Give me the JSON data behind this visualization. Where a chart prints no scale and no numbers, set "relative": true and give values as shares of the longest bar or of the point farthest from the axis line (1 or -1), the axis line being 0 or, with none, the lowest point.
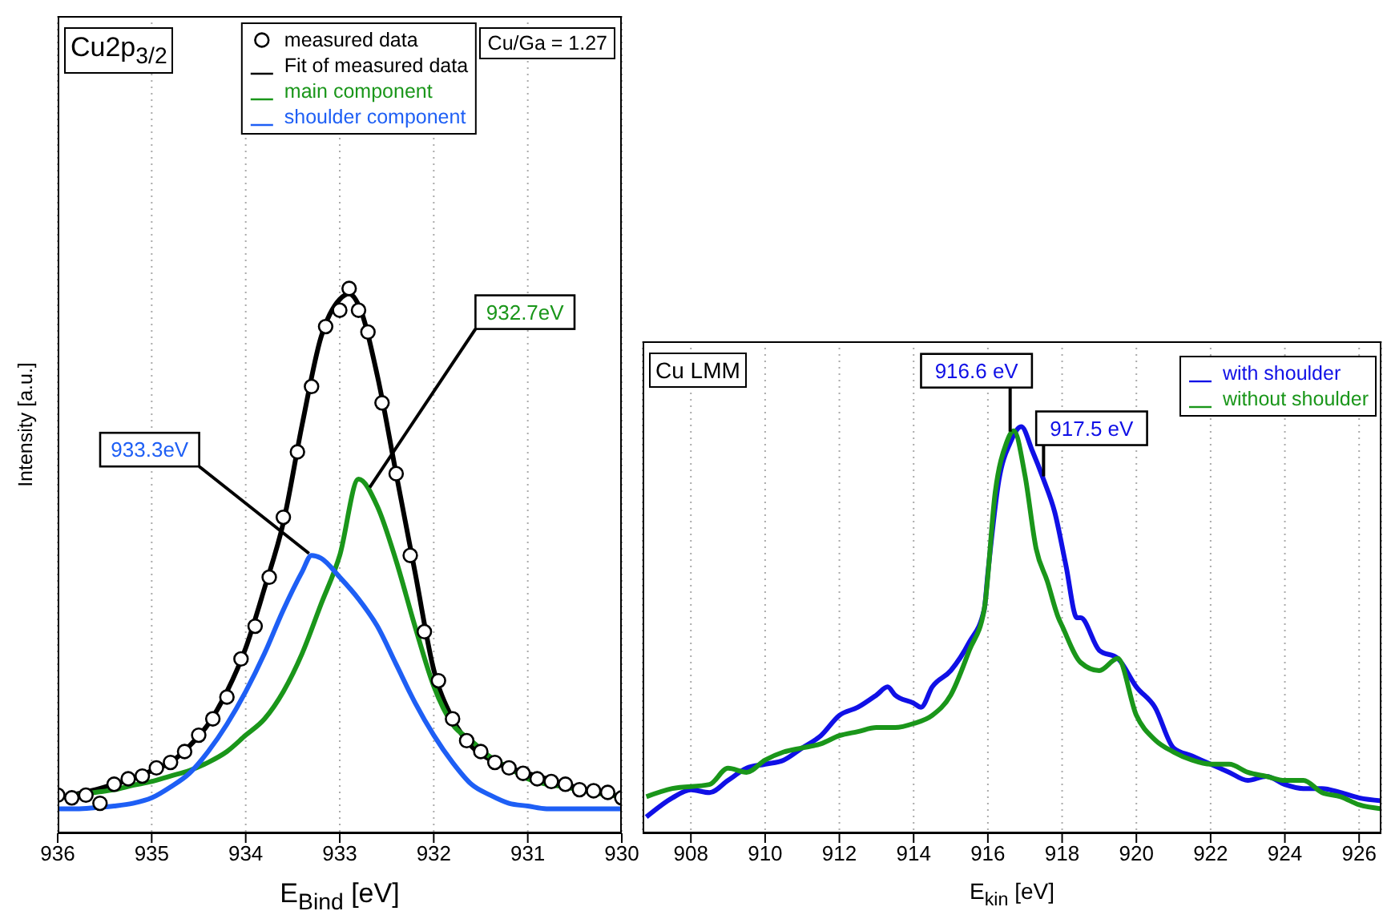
{
  "chart_data": [
    {
      "type": "line",
      "title": "Cu2p$_{3/2}$",
      "xlabel": "E$_{Bind}$ [eV]",
      "ylabel": "Intensity [a.u.]",
      "relative": true,
      "xlim": [
        936,
        930
      ],
      "xticks": [
        936,
        935,
        934,
        933,
        932,
        931,
        930
      ],
      "grid": "x",
      "legend": "top",
      "annotations": [
        {
          "text": "933.3eV",
          "x": 933.3,
          "y": 0.51
        },
        {
          "text": "932.7eV",
          "x": 932.7,
          "y": 0.63
        },
        "Cu/Ga = 1.27"
      ],
      "series": [
        {
          "name": "measured data",
          "type": "scatter",
          "marker": "circle",
          "color": "#000000",
          "x": [
            936,
            935.85,
            935.7,
            935.55,
            935.4,
            935.25,
            935.1,
            934.95,
            934.8,
            934.65,
            934.5,
            934.35,
            934.2,
            934.05,
            933.9,
            933.75,
            933.6,
            933.45,
            933.3,
            933.15,
            933,
            932.9,
            932.8,
            932.7,
            932.55,
            932.4,
            932.25,
            932.1,
            931.95,
            931.8,
            931.65,
            931.5,
            931.35,
            931.2,
            931.05,
            930.9,
            930.75,
            930.6,
            930.45,
            930.3,
            930.15,
            930
          ],
          "values": [
            0.07,
            0.065,
            0.07,
            0.055,
            0.09,
            0.1,
            0.105,
            0.12,
            0.13,
            0.15,
            0.18,
            0.21,
            0.25,
            0.32,
            0.38,
            0.47,
            0.58,
            0.7,
            0.82,
            0.93,
            0.96,
            1.0,
            0.96,
            0.92,
            0.79,
            0.66,
            0.51,
            0.37,
            0.28,
            0.21,
            0.17,
            0.15,
            0.13,
            0.12,
            0.11,
            0.1,
            0.095,
            0.09,
            0.08,
            0.078,
            0.075,
            0.065
          ]
        },
        {
          "name": "Fit of measured data",
          "color": "#000000",
          "x": [
            936,
            935.8,
            935.6,
            935.4,
            935.2,
            935,
            934.8,
            934.6,
            934.4,
            934.2,
            934,
            933.8,
            933.6,
            933.4,
            933.2,
            933,
            932.9,
            932.8,
            932.6,
            932.4,
            932.2,
            932,
            931.8,
            931.6,
            931.4,
            931.2,
            931,
            930.8,
            930.6,
            930.4,
            930.2,
            930
          ],
          "values": [
            0.065,
            0.072,
            0.08,
            0.09,
            0.1,
            0.115,
            0.13,
            0.16,
            0.2,
            0.26,
            0.34,
            0.45,
            0.57,
            0.75,
            0.91,
            0.98,
            0.99,
            0.97,
            0.84,
            0.66,
            0.48,
            0.3,
            0.21,
            0.16,
            0.135,
            0.12,
            0.11,
            0.1,
            0.09,
            0.08,
            0.073,
            0.068
          ]
        },
        {
          "name": "main component",
          "color": "#1a961a",
          "x": [
            936,
            935.8,
            935.6,
            935.4,
            935.2,
            935,
            934.8,
            934.6,
            934.4,
            934.2,
            934,
            933.8,
            933.6,
            933.4,
            933.2,
            933,
            932.8,
            932.6,
            932.4,
            932.2,
            932,
            931.8,
            931.6,
            931.4,
            931.2,
            931,
            930.8,
            930.6,
            930.4,
            930.2,
            930
          ],
          "values": [
            0.065,
            0.07,
            0.075,
            0.08,
            0.088,
            0.095,
            0.105,
            0.115,
            0.13,
            0.15,
            0.18,
            0.21,
            0.26,
            0.33,
            0.42,
            0.51,
            0.65,
            0.6,
            0.5,
            0.38,
            0.27,
            0.2,
            0.17,
            0.14,
            0.12,
            0.1,
            0.09,
            0.085,
            0.078,
            0.072,
            0.068
          ]
        },
        {
          "name": "shoulder component",
          "color": "#1e5ff5",
          "x": [
            936,
            935.8,
            935.6,
            935.4,
            935.2,
            935,
            934.8,
            934.6,
            934.4,
            934.2,
            934,
            933.8,
            933.6,
            933.4,
            933.3,
            933.2,
            933,
            932.8,
            932.6,
            932.4,
            932.2,
            932,
            931.8,
            931.6,
            931.4,
            931.2,
            931,
            930.8,
            930.6,
            930.4,
            930.2,
            930
          ],
          "values": [
            0.045,
            0.045,
            0.047,
            0.05,
            0.055,
            0.065,
            0.085,
            0.11,
            0.15,
            0.2,
            0.26,
            0.33,
            0.41,
            0.48,
            0.51,
            0.505,
            0.47,
            0.43,
            0.38,
            0.31,
            0.24,
            0.18,
            0.13,
            0.09,
            0.07,
            0.055,
            0.05,
            0.045,
            0.045,
            0.045,
            0.045,
            0.045
          ]
        }
      ]
    },
    {
      "type": "line",
      "title": "Cu LMM",
      "xlabel": "E$_{kin}$ [eV]",
      "relative": true,
      "xlim": [
        906.7,
        926.6
      ],
      "xticks": [
        908,
        910,
        912,
        914,
        916,
        918,
        920,
        922,
        924,
        926
      ],
      "grid": "x",
      "legend": "top right",
      "annotations": [
        {
          "text": "916.6 eV",
          "x": 916.6,
          "y": 0.98
        },
        {
          "text": "917.5 eV",
          "x": 917.5,
          "y": 0.87
        }
      ],
      "series": [
        {
          "name": "with shoulder",
          "color": "#1010e6",
          "x": [
            906.8,
            907.5,
            908,
            908.5,
            909,
            909.5,
            910,
            910.5,
            911,
            911.5,
            912,
            912.5,
            913,
            913.3,
            913.5,
            914,
            914.2,
            914.5,
            915,
            915.5,
            915.9,
            916,
            916.3,
            916.6,
            916.9,
            917.2,
            917.5,
            917.8,
            918.1,
            918.4,
            918.5,
            919,
            919.5,
            920,
            920.5,
            921,
            921.5,
            922,
            922.5,
            923,
            923.5,
            924,
            924.5,
            925,
            925.5,
            926,
            926.6
          ],
          "values": [
            0.04,
            0.087,
            0.107,
            0.1,
            0.13,
            0.16,
            0.17,
            0.18,
            0.21,
            0.24,
            0.29,
            0.31,
            0.34,
            0.36,
            0.34,
            0.32,
            0.31,
            0.36,
            0.4,
            0.47,
            0.55,
            0.64,
            0.87,
            0.96,
            1.0,
            0.94,
            0.87,
            0.79,
            0.66,
            0.53,
            0.53,
            0.45,
            0.43,
            0.36,
            0.31,
            0.21,
            0.19,
            0.17,
            0.15,
            0.13,
            0.14,
            0.12,
            0.11,
            0.11,
            0.1,
            0.087,
            0.08
          ]
        },
        {
          "name": "without shoulder",
          "color": "#1a961a",
          "x": [
            906.8,
            907.5,
            908.5,
            909,
            909.5,
            910,
            910.5,
            911,
            911.5,
            912,
            912.5,
            913,
            913.5,
            914,
            914.5,
            915,
            915.5,
            915.9,
            916.2,
            916.5,
            916.7,
            917,
            917.3,
            917.6,
            917.9,
            918,
            918.5,
            919,
            919.5,
            920,
            920.5,
            921,
            921.5,
            922,
            922.5,
            923,
            923.5,
            924,
            924.5,
            925,
            925.5,
            926,
            926.6
          ],
          "values": [
            0.09,
            0.11,
            0.12,
            0.16,
            0.15,
            0.18,
            0.2,
            0.21,
            0.22,
            0.24,
            0.25,
            0.26,
            0.26,
            0.27,
            0.29,
            0.34,
            0.45,
            0.55,
            0.84,
            0.96,
            0.99,
            0.88,
            0.7,
            0.62,
            0.53,
            0.51,
            0.42,
            0.4,
            0.43,
            0.29,
            0.23,
            0.2,
            0.18,
            0.17,
            0.17,
            0.15,
            0.14,
            0.13,
            0.13,
            0.1,
            0.09,
            0.07,
            0.06
          ]
        }
      ]
    }
  ]
}
